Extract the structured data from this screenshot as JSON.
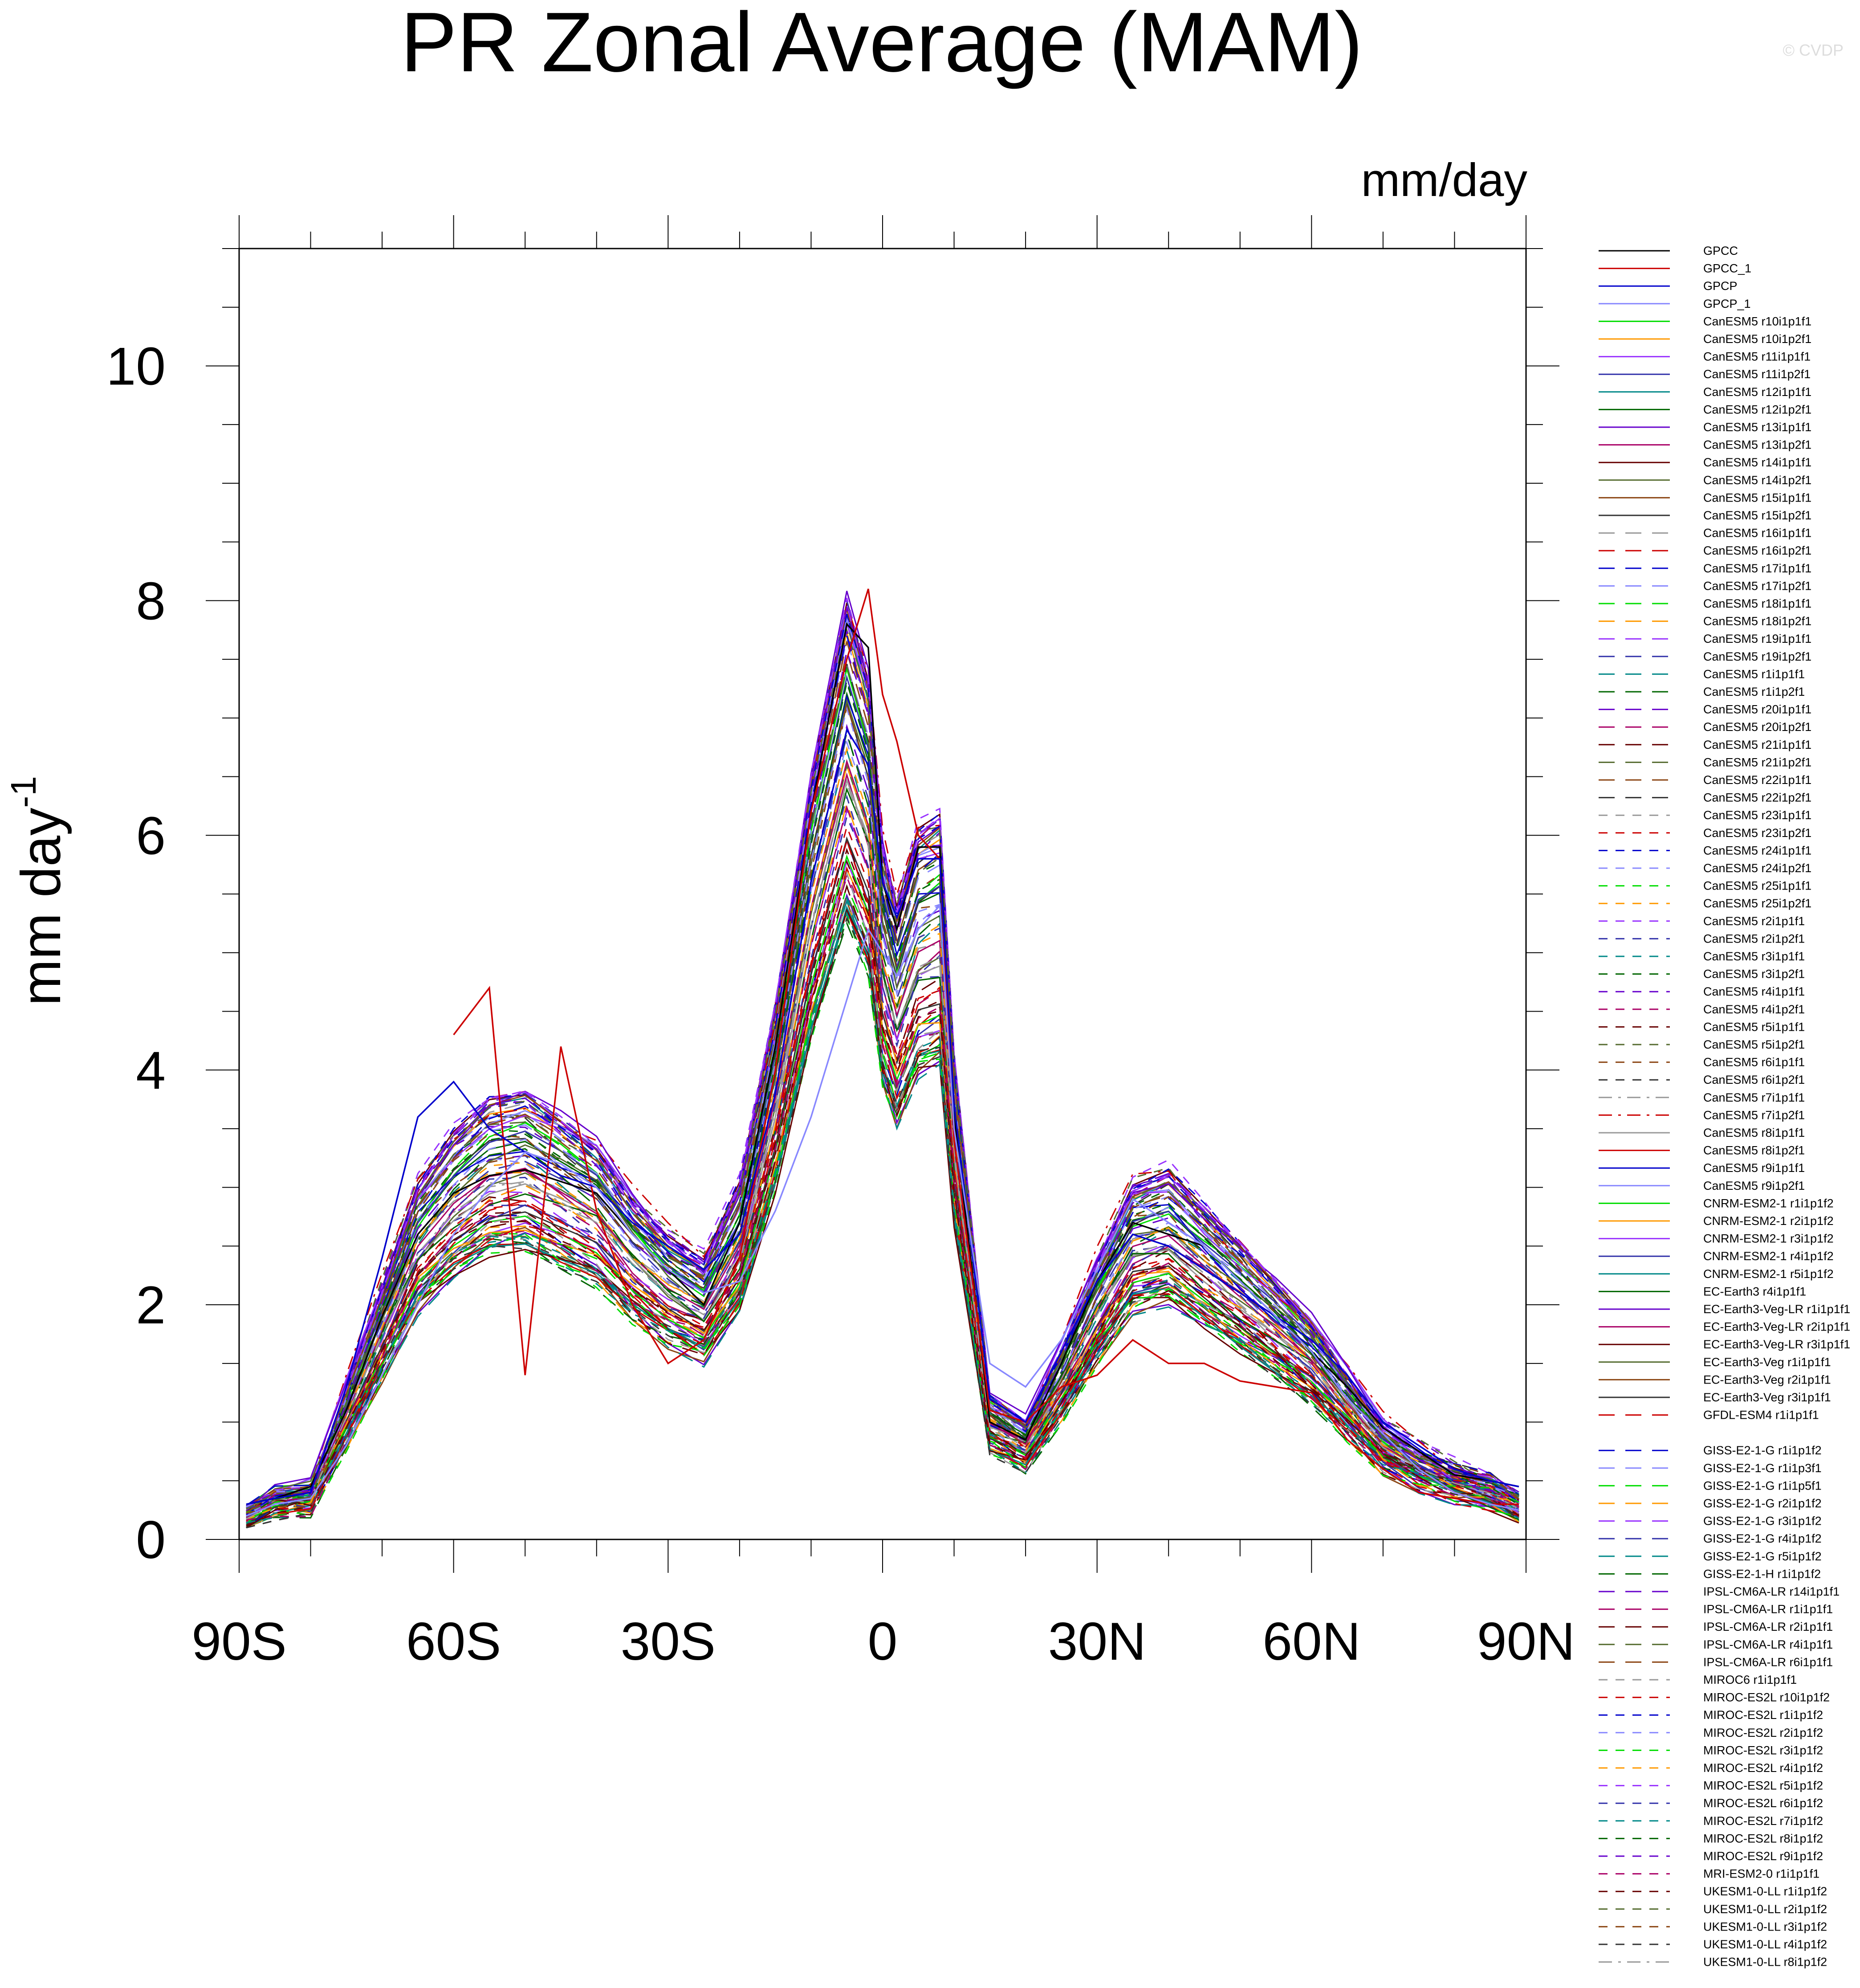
{
  "chart_data": {
    "type": "line",
    "title": "PR Zonal Average (MAM)",
    "units_label": "mm/day",
    "copyright": "© CVDP",
    "xlabel": "",
    "ylabel": "mm day",
    "ylabel_superscript": "-1",
    "xlim": [
      -90,
      90
    ],
    "ylim": [
      0,
      11
    ],
    "x_ticks": [
      -90,
      -60,
      -30,
      0,
      30,
      60,
      90
    ],
    "x_tick_labels": [
      "90S",
      "60S",
      "30S",
      "0",
      "30N",
      "60N",
      "90N"
    ],
    "y_ticks": [
      0,
      2,
      4,
      6,
      8,
      10
    ],
    "y_tick_labels": [
      "0",
      "2",
      "4",
      "6",
      "8",
      "10"
    ],
    "x": [
      -89,
      -85,
      -80,
      -75,
      -70,
      -65,
      -60,
      -55,
      -50,
      -45,
      -40,
      -35,
      -30,
      -25,
      -20,
      -15,
      -10,
      -5,
      -2,
      0,
      2,
      5,
      8,
      10,
      15,
      20,
      25,
      30,
      35,
      40,
      45,
      50,
      55,
      60,
      65,
      70,
      75,
      80,
      85,
      89
    ],
    "base_profile": [
      0.2,
      0.35,
      0.4,
      1.2,
      2.0,
      2.8,
      3.2,
      3.45,
      3.5,
      3.3,
      3.1,
      2.7,
      2.4,
      2.2,
      2.8,
      4.2,
      6.0,
      7.4,
      6.8,
      5.5,
      5.0,
      5.6,
      5.7,
      3.8,
      1.1,
      0.9,
      1.5,
      2.2,
      2.8,
      2.9,
      2.6,
      2.3,
      2.0,
      1.7,
      1.3,
      0.9,
      0.7,
      0.55,
      0.45,
      0.3
    ],
    "highlighted_series": [
      {
        "name": "GPCC",
        "color": "#000000",
        "values": [
          0.3,
          0.35,
          0.45,
          1.1,
          1.9,
          2.6,
          2.95,
          3.1,
          3.15,
          3.05,
          2.95,
          2.6,
          2.3,
          2.0,
          2.7,
          4.2,
          6.2,
          7.8,
          7.6,
          5.6,
          5.2,
          5.9,
          5.9,
          3.6,
          1.0,
          0.85,
          1.5,
          2.2,
          2.7,
          2.6,
          2.5,
          2.2,
          1.9,
          1.6,
          1.3,
          0.95,
          0.75,
          0.55,
          0.5,
          0.45
        ]
      },
      {
        "name": "GPCC_1",
        "color": "#cc0000",
        "values": [
          null,
          null,
          null,
          null,
          null,
          null,
          4.3,
          4.7,
          1.4,
          4.2,
          2.8,
          2.0,
          1.5,
          1.7,
          2.4,
          4.0,
          6.2,
          7.5,
          8.1,
          7.2,
          6.8,
          6.0,
          5.8,
          3.4,
          1.1,
          1.0,
          1.3,
          1.4,
          1.7,
          1.5,
          1.5,
          1.35,
          1.3,
          1.25,
          0.85,
          0.6,
          0.4,
          0.35,
          0.3,
          0.3
        ]
      },
      {
        "name": "GPCP",
        "color": "#0000cc",
        "values": [
          0.3,
          0.35,
          0.4,
          1.3,
          2.4,
          3.6,
          3.9,
          3.5,
          3.3,
          3.1,
          3.0,
          2.7,
          2.5,
          2.3,
          2.6,
          3.8,
          5.6,
          6.9,
          6.6,
          5.6,
          5.3,
          5.8,
          5.8,
          3.7,
          1.2,
          1.0,
          1.6,
          2.2,
          2.6,
          2.5,
          2.3,
          2.1,
          1.9,
          1.7,
          1.4,
          1.0,
          0.8,
          0.6,
          0.5,
          0.45
        ]
      },
      {
        "name": "GPCP_1",
        "color": "#8888ff",
        "values": [
          0.2,
          0.3,
          0.35,
          0.8,
          1.4,
          2.0,
          2.6,
          3.0,
          3.3,
          3.2,
          3.0,
          2.6,
          2.3,
          2.1,
          2.2,
          2.8,
          3.6,
          4.6,
          5.2,
          5.0,
          4.8,
          5.2,
          5.4,
          3.5,
          1.5,
          1.3,
          1.7,
          2.3,
          2.9,
          2.7,
          2.5,
          2.2,
          1.9,
          1.6,
          1.2,
          0.9,
          0.6,
          0.4,
          0.3,
          0.25
        ]
      }
    ],
    "series": [
      {
        "name": "GPCC",
        "color": "#000000",
        "dash": "solid"
      },
      {
        "name": "GPCC_1",
        "color": "#cc0000",
        "dash": "solid"
      },
      {
        "name": "GPCP",
        "color": "#0000cc",
        "dash": "solid"
      },
      {
        "name": "GPCP_1",
        "color": "#8888ff",
        "dash": "solid"
      },
      {
        "name": "CanESM5 r10i1p1f1",
        "color": "#00dd00",
        "dash": "solid"
      },
      {
        "name": "CanESM5 r10i1p2f1",
        "color": "#ff9900",
        "dash": "solid"
      },
      {
        "name": "CanESM5 r11i1p1f1",
        "color": "#9933ff",
        "dash": "solid"
      },
      {
        "name": "CanESM5 r11i1p2f1",
        "color": "#3333aa",
        "dash": "solid"
      },
      {
        "name": "CanESM5 r12i1p1f1",
        "color": "#008888",
        "dash": "solid"
      },
      {
        "name": "CanESM5 r12i1p2f1",
        "color": "#006600",
        "dash": "solid"
      },
      {
        "name": "CanESM5 r13i1p1f1",
        "color": "#6600cc",
        "dash": "solid"
      },
      {
        "name": "CanESM5 r13i1p2f1",
        "color": "#aa0066",
        "dash": "solid"
      },
      {
        "name": "CanESM5 r14i1p1f1",
        "color": "#660000",
        "dash": "solid"
      },
      {
        "name": "CanESM5 r14i1p2f1",
        "color": "#556b2f",
        "dash": "solid"
      },
      {
        "name": "CanESM5 r15i1p1f1",
        "color": "#8b4513",
        "dash": "solid"
      },
      {
        "name": "CanESM5 r15i1p2f1",
        "color": "#333333",
        "dash": "solid"
      },
      {
        "name": "CanESM5 r16i1p1f1",
        "color": "#999999",
        "dash": "longdash"
      },
      {
        "name": "CanESM5 r16i1p2f1",
        "color": "#cc0000",
        "dash": "longdash"
      },
      {
        "name": "CanESM5 r17i1p1f1",
        "color": "#0000cc",
        "dash": "longdash"
      },
      {
        "name": "CanESM5 r17i1p2f1",
        "color": "#8888ff",
        "dash": "longdash"
      },
      {
        "name": "CanESM5 r18i1p1f1",
        "color": "#00dd00",
        "dash": "longdash"
      },
      {
        "name": "CanESM5 r18i1p2f1",
        "color": "#ff9900",
        "dash": "longdash"
      },
      {
        "name": "CanESM5 r19i1p1f1",
        "color": "#9933ff",
        "dash": "longdash"
      },
      {
        "name": "CanESM5 r19i1p2f1",
        "color": "#3333aa",
        "dash": "longdash"
      },
      {
        "name": "CanESM5 r1i1p1f1",
        "color": "#008888",
        "dash": "longdash"
      },
      {
        "name": "CanESM5 r1i1p2f1",
        "color": "#006600",
        "dash": "longdash"
      },
      {
        "name": "CanESM5 r20i1p1f1",
        "color": "#6600cc",
        "dash": "longdash"
      },
      {
        "name": "CanESM5 r20i1p2f1",
        "color": "#aa0066",
        "dash": "longdash"
      },
      {
        "name": "CanESM5 r21i1p1f1",
        "color": "#660000",
        "dash": "longdash"
      },
      {
        "name": "CanESM5 r21i1p2f1",
        "color": "#556b2f",
        "dash": "longdash"
      },
      {
        "name": "CanESM5 r22i1p1f1",
        "color": "#8b4513",
        "dash": "longdash"
      },
      {
        "name": "CanESM5 r22i1p2f1",
        "color": "#333333",
        "dash": "longdash"
      },
      {
        "name": "CanESM5 r23i1p1f1",
        "color": "#999999",
        "dash": "dash"
      },
      {
        "name": "CanESM5 r23i1p2f1",
        "color": "#cc0000",
        "dash": "dash"
      },
      {
        "name": "CanESM5 r24i1p1f1",
        "color": "#0000cc",
        "dash": "dash"
      },
      {
        "name": "CanESM5 r24i1p2f1",
        "color": "#8888ff",
        "dash": "dash"
      },
      {
        "name": "CanESM5 r25i1p1f1",
        "color": "#00dd00",
        "dash": "dash"
      },
      {
        "name": "CanESM5 r25i1p2f1",
        "color": "#ff9900",
        "dash": "dash"
      },
      {
        "name": "CanESM5 r2i1p1f1",
        "color": "#9933ff",
        "dash": "dash"
      },
      {
        "name": "CanESM5 r2i1p2f1",
        "color": "#3333aa",
        "dash": "dash"
      },
      {
        "name": "CanESM5 r3i1p1f1",
        "color": "#008888",
        "dash": "dash"
      },
      {
        "name": "CanESM5 r3i1p2f1",
        "color": "#006600",
        "dash": "dash"
      },
      {
        "name": "CanESM5 r4i1p1f1",
        "color": "#6600cc",
        "dash": "dash"
      },
      {
        "name": "CanESM5 r4i1p2f1",
        "color": "#aa0066",
        "dash": "dash"
      },
      {
        "name": "CanESM5 r5i1p1f1",
        "color": "#660000",
        "dash": "dash"
      },
      {
        "name": "CanESM5 r5i1p2f1",
        "color": "#556b2f",
        "dash": "dash"
      },
      {
        "name": "CanESM5 r6i1p1f1",
        "color": "#8b4513",
        "dash": "dash"
      },
      {
        "name": "CanESM5 r6i1p2f1",
        "color": "#333333",
        "dash": "dash"
      },
      {
        "name": "CanESM5 r7i1p1f1",
        "color": "#999999",
        "dash": "dashdot"
      },
      {
        "name": "CanESM5 r7i1p2f1",
        "color": "#cc0000",
        "dash": "dashdot"
      },
      {
        "name": "CanESM5 r8i1p1f1",
        "color": "#999999",
        "dash": "solid"
      },
      {
        "name": "CanESM5 r8i1p2f1",
        "color": "#cc0000",
        "dash": "solid"
      },
      {
        "name": "CanESM5 r9i1p1f1",
        "color": "#0000cc",
        "dash": "solid"
      },
      {
        "name": "CanESM5 r9i1p2f1",
        "color": "#8888ff",
        "dash": "solid"
      },
      {
        "name": "CNRM-ESM2-1 r1i1p1f2",
        "color": "#00dd00",
        "dash": "solid"
      },
      {
        "name": "CNRM-ESM2-1 r2i1p1f2",
        "color": "#ff9900",
        "dash": "solid"
      },
      {
        "name": "CNRM-ESM2-1 r3i1p1f2",
        "color": "#9933ff",
        "dash": "solid"
      },
      {
        "name": "CNRM-ESM2-1 r4i1p1f2",
        "color": "#3333aa",
        "dash": "solid"
      },
      {
        "name": "CNRM-ESM2-1 r5i1p1f2",
        "color": "#008888",
        "dash": "solid"
      },
      {
        "name": "EC-Earth3 r4i1p1f1",
        "color": "#006600",
        "dash": "solid"
      },
      {
        "name": "EC-Earth3-Veg-LR r1i1p1f1",
        "color": "#6600cc",
        "dash": "solid"
      },
      {
        "name": "EC-Earth3-Veg-LR r2i1p1f1",
        "color": "#aa0066",
        "dash": "solid"
      },
      {
        "name": "EC-Earth3-Veg-LR r3i1p1f1",
        "color": "#660000",
        "dash": "solid"
      },
      {
        "name": "EC-Earth3-Veg r1i1p1f1",
        "color": "#556b2f",
        "dash": "solid"
      },
      {
        "name": "EC-Earth3-Veg r2i1p1f1",
        "color": "#8b4513",
        "dash": "solid"
      },
      {
        "name": "EC-Earth3-Veg r3i1p1f1",
        "color": "#333333",
        "dash": "solid"
      },
      {
        "name": "GFDL-ESM4 r1i1p1f1",
        "color": "#cc0000",
        "dash": "longdash"
      },
      {
        "name": "GISS-E2-1-G r1i1p1f2",
        "color": "#0000cc",
        "dash": "longdash"
      },
      {
        "name": "GISS-E2-1-G r1i1p3f1",
        "color": "#8888ff",
        "dash": "longdash"
      },
      {
        "name": "GISS-E2-1-G r1i1p5f1",
        "color": "#00dd00",
        "dash": "longdash"
      },
      {
        "name": "GISS-E2-1-G r2i1p1f2",
        "color": "#ff9900",
        "dash": "longdash"
      },
      {
        "name": "GISS-E2-1-G r3i1p1f2",
        "color": "#9933ff",
        "dash": "longdash"
      },
      {
        "name": "GISS-E2-1-G r4i1p1f2",
        "color": "#3333aa",
        "dash": "longdash"
      },
      {
        "name": "GISS-E2-1-G r5i1p1f2",
        "color": "#008888",
        "dash": "longdash"
      },
      {
        "name": "GISS-E2-1-H r1i1p1f2",
        "color": "#006600",
        "dash": "longdash"
      },
      {
        "name": "IPSL-CM6A-LR r14i1p1f1",
        "color": "#6600cc",
        "dash": "longdash"
      },
      {
        "name": "IPSL-CM6A-LR r1i1p1f1",
        "color": "#aa0066",
        "dash": "longdash"
      },
      {
        "name": "IPSL-CM6A-LR r2i1p1f1",
        "color": "#660000",
        "dash": "longdash"
      },
      {
        "name": "IPSL-CM6A-LR r4i1p1f1",
        "color": "#556b2f",
        "dash": "longdash"
      },
      {
        "name": "IPSL-CM6A-LR r6i1p1f1",
        "color": "#8b4513",
        "dash": "longdash"
      },
      {
        "name": "MIROC6 r1i1p1f1",
        "color": "#999999",
        "dash": "dash"
      },
      {
        "name": "MIROC-ES2L r10i1p1f2",
        "color": "#cc0000",
        "dash": "dash"
      },
      {
        "name": "MIROC-ES2L r1i1p1f2",
        "color": "#0000cc",
        "dash": "dash"
      },
      {
        "name": "MIROC-ES2L r2i1p1f2",
        "color": "#8888ff",
        "dash": "dash"
      },
      {
        "name": "MIROC-ES2L r3i1p1f2",
        "color": "#00dd00",
        "dash": "dash"
      },
      {
        "name": "MIROC-ES2L r4i1p1f2",
        "color": "#ff9900",
        "dash": "dash"
      },
      {
        "name": "MIROC-ES2L r5i1p1f2",
        "color": "#9933ff",
        "dash": "dash"
      },
      {
        "name": "MIROC-ES2L r6i1p1f2",
        "color": "#3333aa",
        "dash": "dash"
      },
      {
        "name": "MIROC-ES2L r7i1p1f2",
        "color": "#008888",
        "dash": "dash"
      },
      {
        "name": "MIROC-ES2L r8i1p1f2",
        "color": "#006600",
        "dash": "dash"
      },
      {
        "name": "MIROC-ES2L r9i1p1f2",
        "color": "#6600cc",
        "dash": "dash"
      },
      {
        "name": "MRI-ESM2-0 r1i1p1f1",
        "color": "#aa0066",
        "dash": "dash"
      },
      {
        "name": "UKESM1-0-LL r1i1p1f2",
        "color": "#660000",
        "dash": "dash"
      },
      {
        "name": "UKESM1-0-LL r2i1p1f2",
        "color": "#556b2f",
        "dash": "dash"
      },
      {
        "name": "UKESM1-0-LL r3i1p1f2",
        "color": "#8b4513",
        "dash": "dash"
      },
      {
        "name": "UKESM1-0-LL r4i1p1f2",
        "color": "#333333",
        "dash": "dash"
      },
      {
        "name": "UKESM1-0-LL r8i1p1f2",
        "color": "#999999",
        "dash": "dashdot"
      }
    ]
  }
}
